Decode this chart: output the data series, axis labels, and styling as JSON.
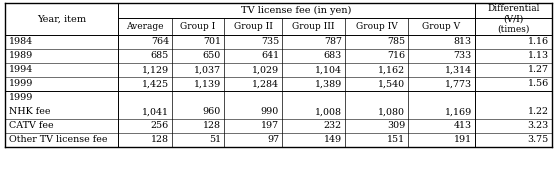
{
  "col0_header": "Year, item",
  "tv_header": "TV license fee (in yen)",
  "diff_header": "Differential\n(V/I)\n(times)",
  "sub_headers": [
    "Average",
    "Group I",
    "Group II",
    "Group III",
    "Group IV",
    "Group V"
  ],
  "rows_section1": [
    [
      "1984",
      "764",
      "701",
      "735",
      "787",
      "785",
      "813",
      "1.16"
    ],
    [
      "1989",
      "685",
      "650",
      "641",
      "683",
      "716",
      "733",
      "1.13"
    ],
    [
      "1994",
      "1,129",
      "1,037",
      "1,029",
      "1,104",
      "1,162",
      "1,314",
      "1.27"
    ],
    [
      "1999",
      "1,425",
      "1,139",
      "1,284",
      "1,389",
      "1,540",
      "1,773",
      "1.56"
    ]
  ],
  "section2_label": "1999",
  "rows_section2": [
    [
      "NHK fee",
      "1,041",
      "960",
      "990",
      "1,008",
      "1,080",
      "1,169",
      "1.22"
    ],
    [
      "CATV fee",
      "256",
      "128",
      "197",
      "232",
      "309",
      "413",
      "3.23"
    ],
    [
      "Other TV license fee",
      "128",
      "51",
      "97",
      "149",
      "151",
      "191",
      "3.75"
    ]
  ],
  "bg_color": "#ffffff",
  "line_color": "#000000",
  "text_color": "#000000",
  "font_size": 6.8,
  "header_font_size": 7.0
}
